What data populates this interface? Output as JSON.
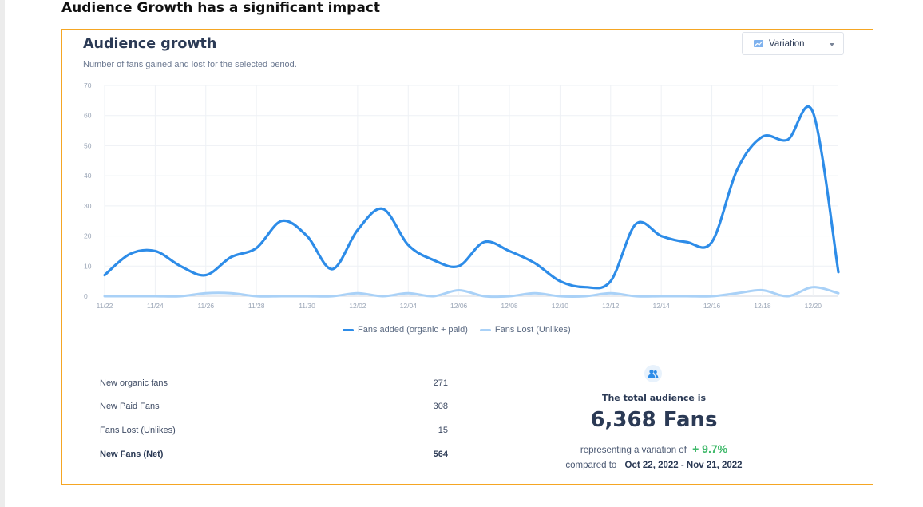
{
  "heading": "Audience Growth has a significant impact",
  "card": {
    "title": "Audience growth",
    "subtitle": "Number of fans gained and lost for the selected period.",
    "select_label": "Variation",
    "select_icon": "chart-icon"
  },
  "chart_data": {
    "type": "line",
    "title": "Audience growth",
    "subtitle": "Number of fans gained and lost for the selected period.",
    "x": [
      "11/22",
      "11/23",
      "11/24",
      "11/25",
      "11/26",
      "11/27",
      "11/28",
      "11/29",
      "11/30",
      "12/01",
      "12/02",
      "12/03",
      "12/04",
      "12/05",
      "12/06",
      "12/07",
      "12/08",
      "12/09",
      "12/10",
      "12/11",
      "12/12",
      "12/13",
      "12/14",
      "12/15",
      "12/16",
      "12/17",
      "12/18",
      "12/19",
      "12/20",
      "12/21"
    ],
    "tick_labels": [
      "11/22",
      "11/24",
      "11/26",
      "11/28",
      "11/30",
      "12/02",
      "12/04",
      "12/06",
      "12/08",
      "12/10",
      "12/12",
      "12/14",
      "12/16",
      "12/18",
      "12/20"
    ],
    "ylim": [
      0,
      70
    ],
    "yticks": [
      0,
      10,
      20,
      30,
      40,
      50,
      60,
      70
    ],
    "grid": true,
    "legend_position": "bottom-center",
    "series": [
      {
        "name": "Fans added (organic + paid)",
        "color": "#2d8ce8",
        "values": [
          7,
          14,
          15,
          10,
          7,
          13,
          16,
          25,
          20,
          9,
          22,
          29,
          17,
          12,
          10,
          18,
          15,
          11,
          5,
          3,
          5,
          24,
          20,
          18,
          18,
          42,
          53,
          52,
          61,
          8
        ]
      },
      {
        "name": "Fans Lost (Unlikes)",
        "color": "#a9d1f7",
        "values": [
          0,
          0,
          0,
          0,
          1,
          1,
          0,
          0,
          0,
          0,
          1,
          0,
          1,
          0,
          2,
          0,
          0,
          1,
          0,
          0,
          1,
          0,
          0,
          0,
          0,
          1,
          2,
          0,
          3,
          1
        ]
      }
    ]
  },
  "stats": [
    {
      "label": "New organic fans",
      "value": "271",
      "bold": false
    },
    {
      "label": "New Paid Fans",
      "value": "308",
      "bold": false
    },
    {
      "label": "Fans Lost (Unlikes)",
      "value": "15",
      "bold": false
    },
    {
      "label": "New Fans (Net)",
      "value": "564",
      "bold": true
    }
  ],
  "summary": {
    "icon": "users-icon",
    "label": "The total audience is",
    "total": "6,368 Fans",
    "variation_prefix": "representing a variation of",
    "variation_value": "+ 9.7%",
    "compare_prefix": "compared to",
    "compare_range": "Oct 22, 2022 - Nov 21, 2022",
    "variation_color": "#3fb96a"
  },
  "colors": {
    "card_border": "#f5a623",
    "title": "#2b3a55"
  }
}
